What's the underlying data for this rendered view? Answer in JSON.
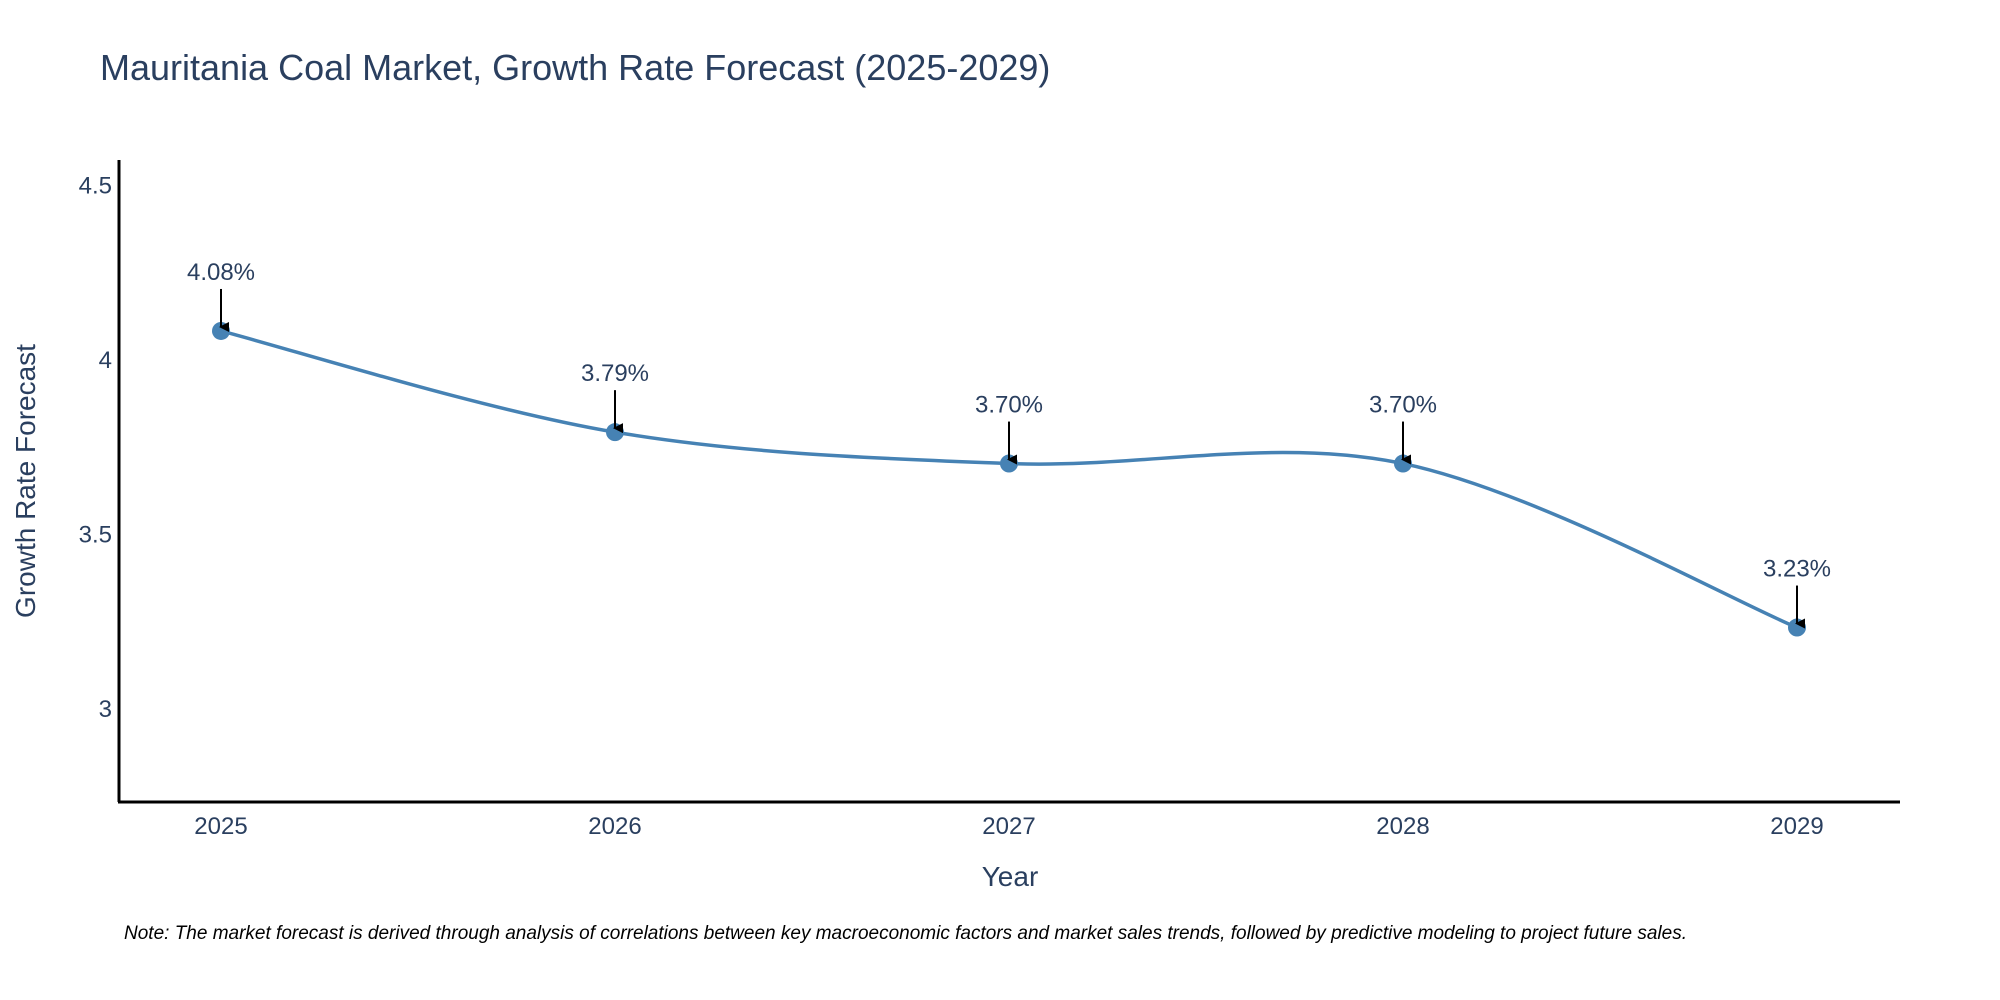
{
  "chart_data": {
    "type": "line",
    "title": "Mauritania Coal Market, Growth Rate Forecast (2025-2029)",
    "xlabel": "Year",
    "ylabel": "Growth Rate Forecast",
    "categories": [
      "2025",
      "2026",
      "2027",
      "2028",
      "2029"
    ],
    "values": [
      4.08,
      3.79,
      3.7,
      3.7,
      3.23
    ],
    "data_labels": [
      "4.08%",
      "3.79%",
      "3.70%",
      "3.70%",
      "3.23%"
    ],
    "ylim": [
      2.73,
      4.57
    ],
    "yticks": [
      3,
      3.5,
      4,
      4.5
    ],
    "ytick_labels": [
      "3",
      "3.5",
      "4",
      "4.5"
    ],
    "grid": false,
    "line_shape": "spline",
    "line_color": "#4682b4",
    "marker_color": "#4682b4",
    "annotation_arrow_color": "#000000",
    "note": "Note: The market forecast is derived through analysis of correlations between key macroeconomic factors and market sales trends, followed by predictive modeling to project future sales."
  }
}
